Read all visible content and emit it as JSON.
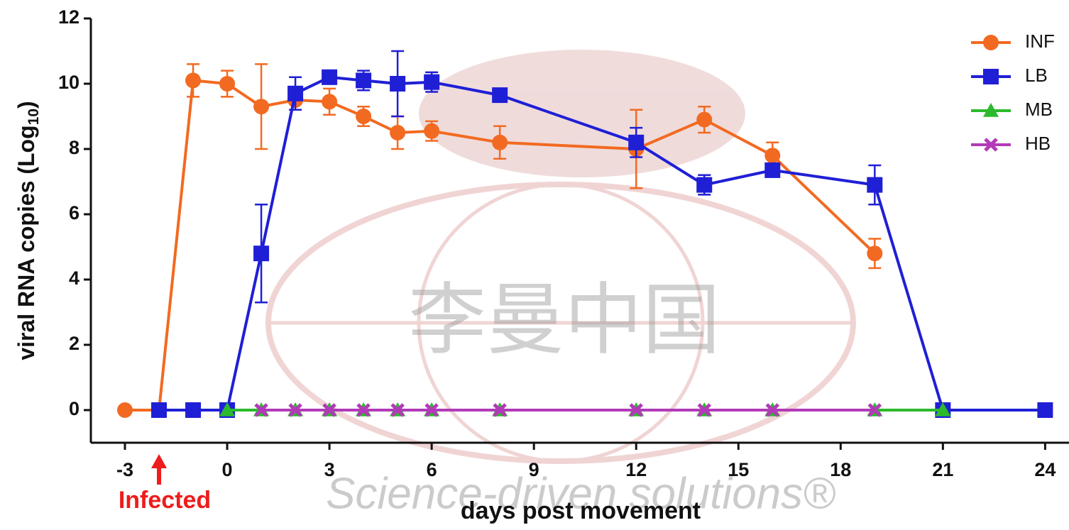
{
  "chart_data": {
    "type": "line",
    "xlabel": "days post movement",
    "ylabel": [
      "viral RNA copies (Log",
      "10",
      ")"
    ],
    "annotation": {
      "text": "Infected",
      "x": -2,
      "color": "#ee1c1c"
    },
    "watermark": [
      "李曼中国",
      "Science-driven solutions®"
    ],
    "xlim": [
      -4,
      24.7
    ],
    "ylim": [
      -1,
      12
    ],
    "xticks": [
      -3,
      0,
      3,
      6,
      9,
      12,
      15,
      18,
      21,
      24
    ],
    "yticks": [
      0,
      2,
      4,
      6,
      8,
      10,
      12
    ],
    "legend": "top-right",
    "series": [
      {
        "name": "INF",
        "color": "#f26a21",
        "marker": "circle",
        "x": [
          -3,
          -2,
          -1,
          0,
          1,
          2,
          3,
          4,
          5,
          6,
          8,
          12,
          14,
          16,
          19
        ],
        "values": [
          0,
          0,
          10.1,
          10.0,
          9.3,
          9.5,
          9.45,
          9.0,
          8.5,
          8.55,
          8.2,
          8.0,
          8.9,
          7.8,
          4.8
        ],
        "errors": [
          0,
          0,
          0.5,
          0.4,
          1.3,
          0.3,
          0.4,
          0.3,
          0.5,
          0.3,
          0.5,
          1.2,
          0.4,
          0.4,
          0.45
        ]
      },
      {
        "name": "LB",
        "color": "#1f1fd6",
        "marker": "square",
        "x": [
          -2,
          -1,
          0,
          1,
          2,
          3,
          4,
          5,
          6,
          8,
          12,
          14,
          16,
          19,
          21,
          24
        ],
        "values": [
          0,
          0,
          0,
          4.8,
          9.7,
          10.2,
          10.1,
          10.0,
          10.05,
          9.65,
          8.2,
          6.9,
          7.35,
          6.9,
          0,
          0
        ],
        "errors": [
          0,
          0,
          0,
          1.5,
          0.5,
          0.2,
          0.3,
          1.0,
          0.3,
          0.2,
          0.45,
          0.3,
          0.2,
          0.6,
          0,
          0
        ]
      },
      {
        "name": "MB",
        "color": "#2cba2c",
        "marker": "triangle",
        "x": [
          0,
          1,
          2,
          3,
          4,
          5,
          6,
          8,
          12,
          14,
          16,
          19,
          21
        ],
        "values": [
          0,
          0,
          0,
          0,
          0,
          0,
          0,
          0,
          0,
          0,
          0,
          0,
          0
        ]
      },
      {
        "name": "HB",
        "color": "#b23ab8",
        "marker": "cross",
        "x": [
          1,
          2,
          3,
          4,
          5,
          6,
          8,
          12,
          14,
          16,
          19
        ],
        "values": [
          0,
          0,
          0,
          0,
          0,
          0,
          0,
          0,
          0,
          0,
          0
        ]
      }
    ]
  }
}
